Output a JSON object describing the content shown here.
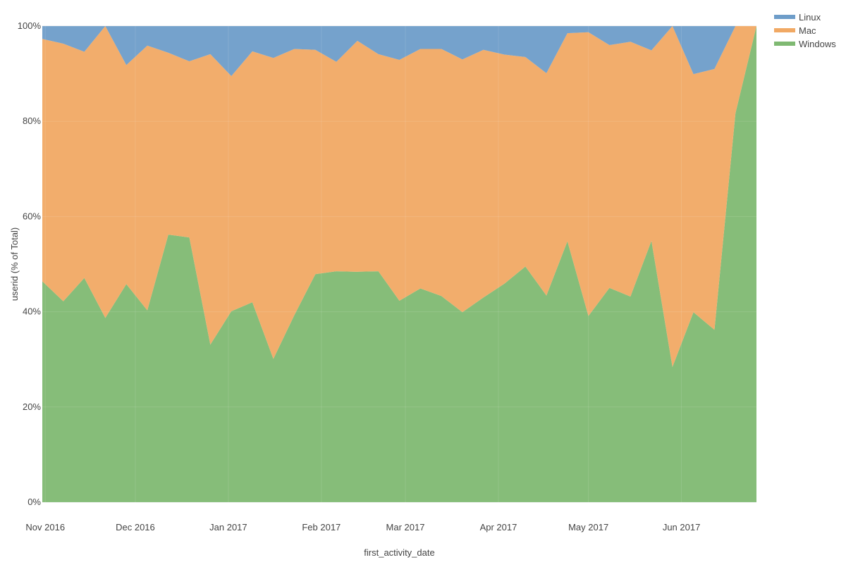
{
  "chart_data": {
    "type": "area",
    "stacked": true,
    "normalized": true,
    "xlabel": "first_activity_date",
    "ylabel": "userid (% of Total)",
    "x": [
      "2016-10-31",
      "2016-11-07",
      "2016-11-14",
      "2016-11-21",
      "2016-11-28",
      "2016-12-05",
      "2016-12-12",
      "2016-12-19",
      "2016-12-26",
      "2017-01-02",
      "2017-01-09",
      "2017-01-16",
      "2017-01-23",
      "2017-01-30",
      "2017-02-06",
      "2017-02-13",
      "2017-02-20",
      "2017-02-27",
      "2017-03-06",
      "2017-03-13",
      "2017-03-20",
      "2017-03-27",
      "2017-04-03",
      "2017-04-10",
      "2017-04-17",
      "2017-04-24",
      "2017-05-01",
      "2017-05-08",
      "2017-05-15",
      "2017-05-22",
      "2017-05-29",
      "2017-06-05",
      "2017-06-12",
      "2017-06-19",
      "2017-06-26"
    ],
    "xlim": [
      "2016-10-31",
      "2017-06-26"
    ],
    "x_ticks": [
      {
        "date": "2016-11-01",
        "label": "Nov 2016"
      },
      {
        "date": "2016-12-01",
        "label": "Dec 2016"
      },
      {
        "date": "2017-01-01",
        "label": "Jan 2017"
      },
      {
        "date": "2017-02-01",
        "label": "Feb 2017"
      },
      {
        "date": "2017-03-01",
        "label": "Mar 2017"
      },
      {
        "date": "2017-04-01",
        "label": "Apr 2017"
      },
      {
        "date": "2017-05-01",
        "label": "May 2017"
      },
      {
        "date": "2017-06-01",
        "label": "Jun 2017"
      }
    ],
    "ylim": [
      0,
      100
    ],
    "y_ticks": [
      0,
      20,
      40,
      60,
      80,
      100
    ],
    "y_tick_labels": [
      "0%",
      "20%",
      "40%",
      "60%",
      "80%",
      "100%"
    ],
    "grid": true,
    "legend_position": "top-right",
    "series": [
      {
        "name": "Windows",
        "color": "#7fb972",
        "values": [
          46.4,
          42.2,
          47.1,
          38.7,
          45.8,
          40.3,
          56.2,
          55.6,
          33.1,
          40.1,
          42.0,
          30.1,
          39.3,
          47.9,
          48.5,
          48.4,
          48.5,
          42.3,
          44.9,
          43.3,
          39.9,
          43.0,
          45.9,
          49.5,
          43.4,
          54.8,
          39.1,
          45.0,
          43.2,
          54.9,
          28.4,
          39.9,
          36.2,
          81.7,
          100.0
        ]
      },
      {
        "name": "Mac",
        "color": "#f1a964",
        "values": [
          50.9,
          54.1,
          47.5,
          61.3,
          46.0,
          55.6,
          38.2,
          37.0,
          61.0,
          49.4,
          52.7,
          63.2,
          55.9,
          47.1,
          44.0,
          48.5,
          45.6,
          50.6,
          50.3,
          51.9,
          53.1,
          52.0,
          48.1,
          44.0,
          46.7,
          43.7,
          59.6,
          51.0,
          53.5,
          40.0,
          71.6,
          50.0,
          54.8,
          18.3,
          0.0
        ]
      },
      {
        "name": "Linux",
        "color": "#6e9dc9",
        "values": [
          2.7,
          3.7,
          5.4,
          0.0,
          8.2,
          4.1,
          5.6,
          7.4,
          5.9,
          10.5,
          5.3,
          6.7,
          4.8,
          5.0,
          7.5,
          3.1,
          5.9,
          7.1,
          4.8,
          4.8,
          7.0,
          5.0,
          6.0,
          6.5,
          9.9,
          1.5,
          1.3,
          4.0,
          3.3,
          5.1,
          0.0,
          10.1,
          9.0,
          0.0,
          0.0
        ]
      }
    ],
    "legend_order": [
      "Linux",
      "Mac",
      "Windows"
    ]
  }
}
